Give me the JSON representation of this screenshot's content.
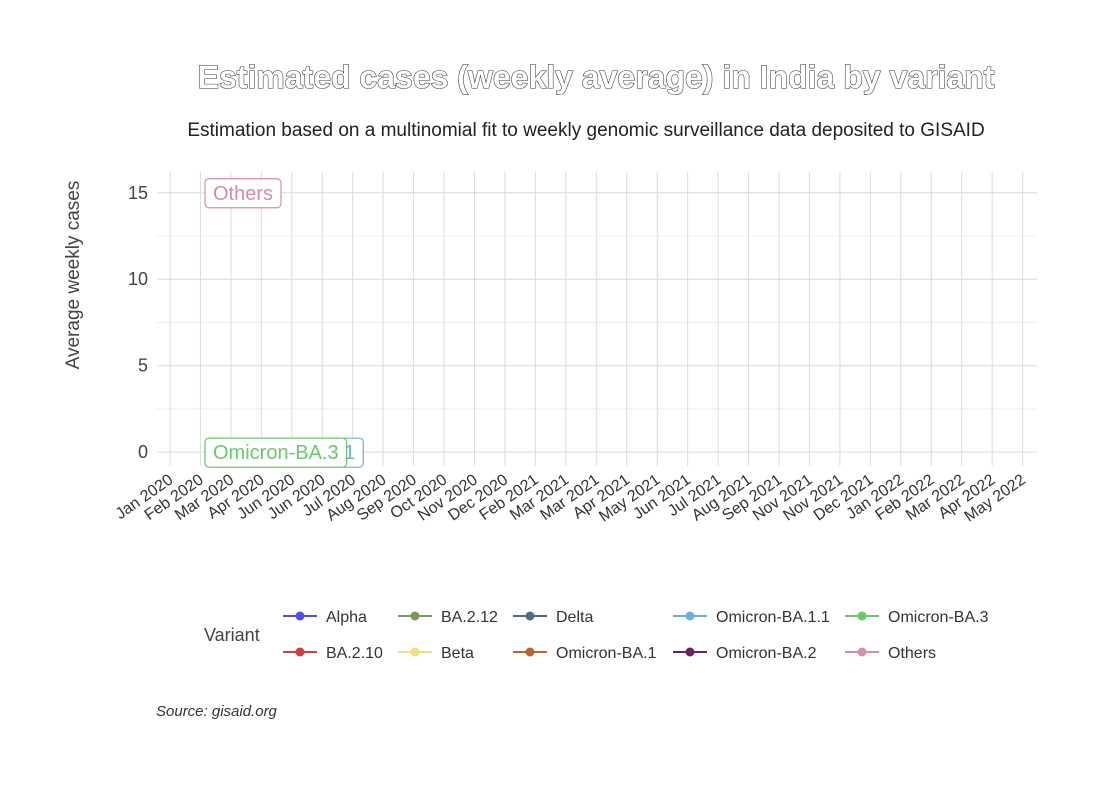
{
  "chart_data": {
    "type": "line",
    "title": "Estimated cases (weekly average) in India by variant",
    "subtitle": "Estimation based on a multinomial fit to weekly genomic surveillance data deposited to GISAID",
    "xlabel": "",
    "ylabel": "Average weekly cases",
    "ylim": [
      -0.8,
      16.2
    ],
    "yticks": [
      0,
      5,
      10,
      15
    ],
    "x_ticks": [
      "Jan 2020",
      "Feb 2020",
      "Mar 2020",
      "Apr 2020",
      "Jun 2020",
      "Jun 2020",
      "Jul 2020",
      "Aug 2020",
      "Sep 2020",
      "Oct 2020",
      "Nov 2020",
      "Dec 2020",
      "Feb 2021",
      "Mar 2021",
      "Mar 2021",
      "Apr 2021",
      "May 2021",
      "Jun 2021",
      "Jul 2021",
      "Aug 2021",
      "Sep 2021",
      "Nov 2021",
      "Nov 2021",
      "Dec 2021",
      "Jan 2022",
      "Feb 2022",
      "Mar 2022",
      "Apr 2022",
      "May 2022"
    ],
    "grid": true,
    "legend_position": "bottom",
    "legend_title": "Variant",
    "series": [
      {
        "name": "Alpha",
        "color": "#5050f0",
        "points": []
      },
      {
        "name": "BA.2.10",
        "color": "#d0403a",
        "points": []
      },
      {
        "name": "BA.2.12",
        "color": "#7a9a55",
        "points": []
      },
      {
        "name": "Beta",
        "color": "#eee080",
        "points": []
      },
      {
        "name": "Delta",
        "color": "#4a6b82",
        "points": []
      },
      {
        "name": "Omicron-BA.1",
        "color": "#c0622f",
        "points": []
      },
      {
        "name": "Omicron-BA.1.1",
        "color": "#6bb0da",
        "points": [
          {
            "x": "Feb 2020",
            "y": 0
          }
        ]
      },
      {
        "name": "Omicron-BA.2",
        "color": "#6e1f5f",
        "points": []
      },
      {
        "name": "Omicron-BA.3",
        "color": "#6ac96a",
        "points": [
          {
            "x": "Feb 2020",
            "y": 0
          }
        ]
      },
      {
        "name": "Others",
        "color": "#d48fa5",
        "points": [
          {
            "x": "Feb 2020",
            "y": 15
          }
        ]
      }
    ],
    "end_labels": [
      {
        "series": "Others",
        "text": "Others",
        "color": "#d48fa5",
        "y": 15
      },
      {
        "series": "Omicron-BA.1.1",
        "text": "Omicron-BA.1.1",
        "color": "#6bb0da",
        "y": 0
      },
      {
        "series": "Omicron-BA.3",
        "text": "Omicron-BA.3",
        "color": "#6ac96a",
        "y": 0
      }
    ],
    "source": "Source: gisaid.org"
  }
}
